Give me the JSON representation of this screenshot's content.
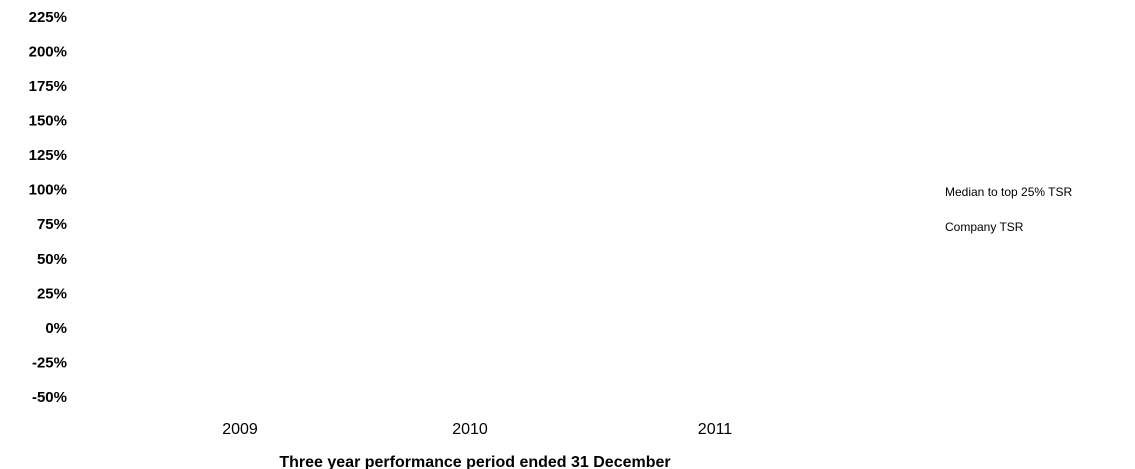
{
  "chart_data": {
    "type": "bar",
    "x_label": "Three year performance period ended 31 December",
    "categories": [
      "2009",
      "2010",
      "2011"
    ],
    "series": [
      {
        "name": "Median to top 25% TSR",
        "values": [
          null,
          null,
          null
        ]
      },
      {
        "name": "Company TSR",
        "values": [
          null,
          null,
          null
        ]
      }
    ],
    "ylim": [
      -50,
      225
    ],
    "yticks": [
      {
        "value": 225,
        "label": "225%"
      },
      {
        "value": 200,
        "label": "200%"
      },
      {
        "value": 175,
        "label": "175%"
      },
      {
        "value": 150,
        "label": "150%"
      },
      {
        "value": 125,
        "label": "125%"
      },
      {
        "value": 100,
        "label": "100%"
      },
      {
        "value": 75,
        "label": "75%"
      },
      {
        "value": 50,
        "label": "50%"
      },
      {
        "value": 25,
        "label": "25%"
      },
      {
        "value": 0,
        "label": "0%"
      },
      {
        "value": -25,
        "label": "-25%"
      },
      {
        "value": -50,
        "label": "-50%"
      }
    ]
  }
}
